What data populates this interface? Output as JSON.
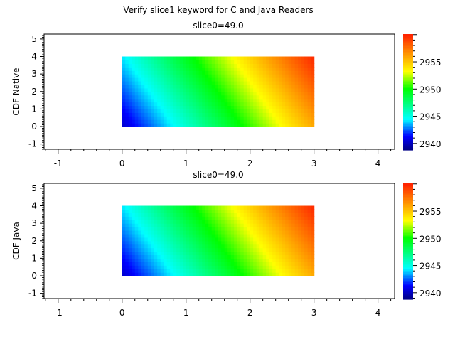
{
  "title": "Verify slice1 keyword for C and Java Readers",
  "colormap": {
    "stops": [
      {
        "t": 0.0,
        "color": "#000080"
      },
      {
        "t": 0.12,
        "color": "#0000ff"
      },
      {
        "t": 0.27,
        "color": "#00ffff"
      },
      {
        "t": 0.53,
        "color": "#00ff00"
      },
      {
        "t": 0.68,
        "color": "#ffff00"
      },
      {
        "t": 1.0,
        "color": "#ff2000"
      }
    ]
  },
  "chart_data": [
    {
      "type": "heatmap",
      "title": "slice0=49.0",
      "ylabel": "CDF Native",
      "xlabel": "",
      "xlim": [
        -1.22,
        4.26
      ],
      "ylim": [
        -1.3,
        5.28
      ],
      "xticks": [
        "-1",
        "0",
        "1",
        "2",
        "3",
        "4"
      ],
      "yticks": [
        "-1",
        "0",
        "1",
        "2",
        "3",
        "4",
        "5"
      ],
      "x": [
        0,
        1,
        2,
        3
      ],
      "y": [
        0,
        1,
        2,
        3,
        4
      ],
      "values": [
        [
          2940.3,
          2945.5,
          2950.7,
          2955.9
        ],
        [
          2941.3,
          2946.5,
          2951.7,
          2956.9
        ],
        [
          2942.3,
          2947.5,
          2952.7,
          2957.9
        ],
        [
          2943.3,
          2948.5,
          2953.7,
          2958.9
        ],
        [
          2944.3,
          2949.5,
          2954.7,
          2959.9
        ]
      ],
      "colorbar": {
        "range": [
          2938.8,
          2960.1
        ],
        "ticks": [
          "2940",
          "2945",
          "2950",
          "2955"
        ]
      }
    },
    {
      "type": "heatmap",
      "title": "slice0=49.0",
      "ylabel": "CDF Java",
      "xlabel": "",
      "xlim": [
        -1.22,
        4.26
      ],
      "ylim": [
        -1.3,
        5.28
      ],
      "xticks": [
        "-1",
        "0",
        "1",
        "2",
        "3",
        "4"
      ],
      "yticks": [
        "-1",
        "0",
        "1",
        "2",
        "3",
        "4",
        "5"
      ],
      "x": [
        0,
        1,
        2,
        3
      ],
      "y": [
        0,
        1,
        2,
        3,
        4
      ],
      "values": [
        [
          2940.3,
          2945.5,
          2950.7,
          2955.9
        ],
        [
          2941.3,
          2946.5,
          2951.7,
          2956.9
        ],
        [
          2942.3,
          2947.5,
          2952.7,
          2957.9
        ],
        [
          2943.3,
          2948.5,
          2953.7,
          2958.9
        ],
        [
          2944.3,
          2949.5,
          2954.7,
          2959.9
        ]
      ],
      "colorbar": {
        "range": [
          2938.8,
          2960.1
        ],
        "ticks": [
          "2940",
          "2945",
          "2950",
          "2955"
        ]
      }
    }
  ]
}
